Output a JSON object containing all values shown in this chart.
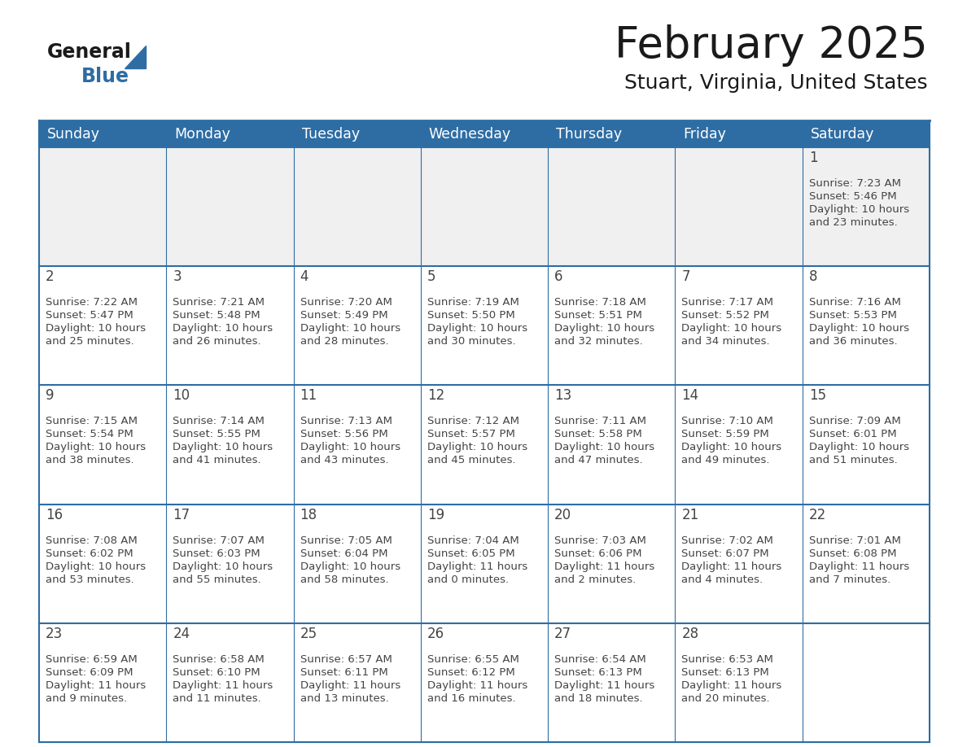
{
  "title": "February 2025",
  "subtitle": "Stuart, Virginia, United States",
  "days_of_week": [
    "Sunday",
    "Monday",
    "Tuesday",
    "Wednesday",
    "Thursday",
    "Friday",
    "Saturday"
  ],
  "header_bg": "#2E6DA4",
  "header_text_color": "#FFFFFF",
  "cell_bg_row0": "#F0F0F0",
  "cell_bg_other": "#FFFFFF",
  "border_color": "#2E6DA4",
  "row_line_color": "#2E6DA4",
  "text_color": "#444444",
  "title_color": "#1a1a1a",
  "logo_general_color": "#1a1a1a",
  "logo_blue_color": "#2E6DA4",
  "calendar_data": [
    [
      null,
      null,
      null,
      null,
      null,
      null,
      {
        "day": 1,
        "sunrise": "7:23 AM",
        "sunset": "5:46 PM",
        "daylight": "10 hours",
        "daylight2": "and 23 minutes."
      }
    ],
    [
      {
        "day": 2,
        "sunrise": "7:22 AM",
        "sunset": "5:47 PM",
        "daylight": "10 hours",
        "daylight2": "and 25 minutes."
      },
      {
        "day": 3,
        "sunrise": "7:21 AM",
        "sunset": "5:48 PM",
        "daylight": "10 hours",
        "daylight2": "and 26 minutes."
      },
      {
        "day": 4,
        "sunrise": "7:20 AM",
        "sunset": "5:49 PM",
        "daylight": "10 hours",
        "daylight2": "and 28 minutes."
      },
      {
        "day": 5,
        "sunrise": "7:19 AM",
        "sunset": "5:50 PM",
        "daylight": "10 hours",
        "daylight2": "and 30 minutes."
      },
      {
        "day": 6,
        "sunrise": "7:18 AM",
        "sunset": "5:51 PM",
        "daylight": "10 hours",
        "daylight2": "and 32 minutes."
      },
      {
        "day": 7,
        "sunrise": "7:17 AM",
        "sunset": "5:52 PM",
        "daylight": "10 hours",
        "daylight2": "and 34 minutes."
      },
      {
        "day": 8,
        "sunrise": "7:16 AM",
        "sunset": "5:53 PM",
        "daylight": "10 hours",
        "daylight2": "and 36 minutes."
      }
    ],
    [
      {
        "day": 9,
        "sunrise": "7:15 AM",
        "sunset": "5:54 PM",
        "daylight": "10 hours",
        "daylight2": "and 38 minutes."
      },
      {
        "day": 10,
        "sunrise": "7:14 AM",
        "sunset": "5:55 PM",
        "daylight": "10 hours",
        "daylight2": "and 41 minutes."
      },
      {
        "day": 11,
        "sunrise": "7:13 AM",
        "sunset": "5:56 PM",
        "daylight": "10 hours",
        "daylight2": "and 43 minutes."
      },
      {
        "day": 12,
        "sunrise": "7:12 AM",
        "sunset": "5:57 PM",
        "daylight": "10 hours",
        "daylight2": "and 45 minutes."
      },
      {
        "day": 13,
        "sunrise": "7:11 AM",
        "sunset": "5:58 PM",
        "daylight": "10 hours",
        "daylight2": "and 47 minutes."
      },
      {
        "day": 14,
        "sunrise": "7:10 AM",
        "sunset": "5:59 PM",
        "daylight": "10 hours",
        "daylight2": "and 49 minutes."
      },
      {
        "day": 15,
        "sunrise": "7:09 AM",
        "sunset": "6:01 PM",
        "daylight": "10 hours",
        "daylight2": "and 51 minutes."
      }
    ],
    [
      {
        "day": 16,
        "sunrise": "7:08 AM",
        "sunset": "6:02 PM",
        "daylight": "10 hours",
        "daylight2": "and 53 minutes."
      },
      {
        "day": 17,
        "sunrise": "7:07 AM",
        "sunset": "6:03 PM",
        "daylight": "10 hours",
        "daylight2": "and 55 minutes."
      },
      {
        "day": 18,
        "sunrise": "7:05 AM",
        "sunset": "6:04 PM",
        "daylight": "10 hours",
        "daylight2": "and 58 minutes."
      },
      {
        "day": 19,
        "sunrise": "7:04 AM",
        "sunset": "6:05 PM",
        "daylight": "11 hours",
        "daylight2": "and 0 minutes."
      },
      {
        "day": 20,
        "sunrise": "7:03 AM",
        "sunset": "6:06 PM",
        "daylight": "11 hours",
        "daylight2": "and 2 minutes."
      },
      {
        "day": 21,
        "sunrise": "7:02 AM",
        "sunset": "6:07 PM",
        "daylight": "11 hours",
        "daylight2": "and 4 minutes."
      },
      {
        "day": 22,
        "sunrise": "7:01 AM",
        "sunset": "6:08 PM",
        "daylight": "11 hours",
        "daylight2": "and 7 minutes."
      }
    ],
    [
      {
        "day": 23,
        "sunrise": "6:59 AM",
        "sunset": "6:09 PM",
        "daylight": "11 hours",
        "daylight2": "and 9 minutes."
      },
      {
        "day": 24,
        "sunrise": "6:58 AM",
        "sunset": "6:10 PM",
        "daylight": "11 hours",
        "daylight2": "and 11 minutes."
      },
      {
        "day": 25,
        "sunrise": "6:57 AM",
        "sunset": "6:11 PM",
        "daylight": "11 hours",
        "daylight2": "and 13 minutes."
      },
      {
        "day": 26,
        "sunrise": "6:55 AM",
        "sunset": "6:12 PM",
        "daylight": "11 hours",
        "daylight2": "and 16 minutes."
      },
      {
        "day": 27,
        "sunrise": "6:54 AM",
        "sunset": "6:13 PM",
        "daylight": "11 hours",
        "daylight2": "and 18 minutes."
      },
      {
        "day": 28,
        "sunrise": "6:53 AM",
        "sunset": "6:13 PM",
        "daylight": "11 hours",
        "daylight2": "and 20 minutes."
      },
      null
    ]
  ]
}
